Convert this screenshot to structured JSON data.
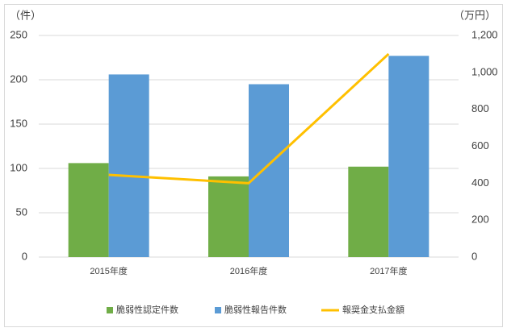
{
  "chart_data": {
    "type": "bar",
    "y_label": "（件）",
    "y2_label": "（万円）",
    "categories": [
      "2015年度",
      "2016年度",
      "2017年度"
    ],
    "series": [
      {
        "name": "脆弱性認定件数",
        "color": "#70ad47",
        "values": [
          106,
          91,
          102
        ]
      },
      {
        "name": "脆弱性報告件数",
        "color": "#5b9bd5",
        "values": [
          206,
          195,
          227
        ]
      },
      {
        "name": "報奨金支払金額",
        "color": "#ffc000",
        "type": "line",
        "axis": "y2",
        "values": [
          445,
          400,
          1100
        ]
      }
    ],
    "ylim": [
      0,
      250
    ],
    "yticks": [
      0,
      50,
      100,
      150,
      200,
      250
    ],
    "y2lim": [
      0,
      1200
    ],
    "y2ticks": [
      0,
      200,
      400,
      600,
      800,
      {
        "value": 1000,
        "label": "1,000"
      },
      {
        "value": 1200,
        "label": "1,200"
      }
    ],
    "grid": true,
    "legend": "bottom"
  }
}
